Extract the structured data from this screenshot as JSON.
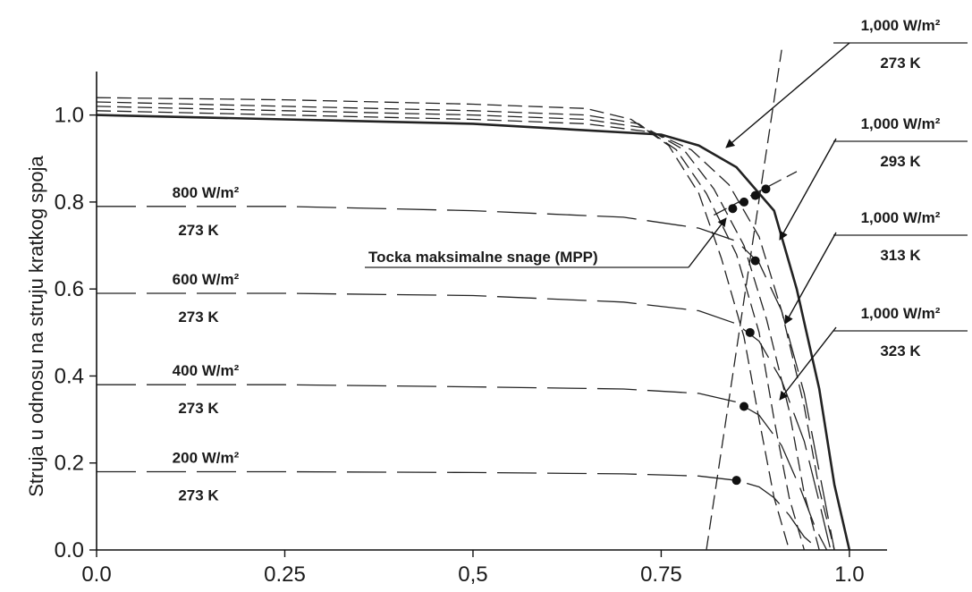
{
  "chart_data": {
    "type": "line",
    "title": "",
    "xlabel": "",
    "ylabel": "Struja u odnosu na struju kratkog spoja",
    "xlim": [
      0,
      1.05
    ],
    "ylim": [
      0,
      1.1
    ],
    "x_ticks": [
      {
        "value": 0,
        "label": "0.0"
      },
      {
        "value": 0.25,
        "label": "0.25"
      },
      {
        "value": 0.5,
        "label": "0,5"
      },
      {
        "value": 0.75,
        "label": "0.75"
      },
      {
        "value": 1.0,
        "label": "1.0"
      }
    ],
    "y_ticks": [
      {
        "value": 0,
        "label": "0.0"
      },
      {
        "value": 0.2,
        "label": "0.2"
      },
      {
        "value": 0.4,
        "label": "0.4"
      },
      {
        "value": 0.6,
        "label": "0.6"
      },
      {
        "value": 0.8,
        "label": "0.8"
      },
      {
        "value": 1.0,
        "label": "1.0"
      }
    ],
    "grid": false,
    "legend": "none",
    "series": [
      {
        "irradiance": "1,000 W/m²",
        "temperature": "273 K",
        "style": "solid",
        "x": [
          0,
          0.25,
          0.5,
          0.65,
          0.75,
          0.8,
          0.85,
          0.9,
          0.93,
          0.96,
          0.98,
          1.0
        ],
        "y": [
          1.0,
          0.99,
          0.98,
          0.965,
          0.955,
          0.93,
          0.88,
          0.78,
          0.6,
          0.37,
          0.15,
          0.0
        ]
      },
      {
        "irradiance": "1,000 W/m²",
        "temperature": "293 K",
        "style": "dashed",
        "x": [
          0,
          0.25,
          0.5,
          0.65,
          0.74,
          0.79,
          0.84,
          0.88,
          0.91,
          0.94,
          0.96,
          0.98
        ],
        "y": [
          1.01,
          1.0,
          0.99,
          0.98,
          0.96,
          0.92,
          0.84,
          0.72,
          0.55,
          0.33,
          0.14,
          0.0
        ]
      },
      {
        "irradiance": "1,000 W/m²",
        "temperature": "313 K",
        "style": "dashed",
        "x": [
          0,
          0.25,
          0.5,
          0.65,
          0.73,
          0.78,
          0.82,
          0.86,
          0.89,
          0.92,
          0.94,
          0.96
        ],
        "y": [
          1.02,
          1.01,
          1.0,
          0.99,
          0.97,
          0.92,
          0.83,
          0.7,
          0.53,
          0.32,
          0.13,
          0.0
        ]
      },
      {
        "irradiance": "1,000 W/m²",
        "temperature": "323 K",
        "style": "dashed",
        "x": [
          0,
          0.25,
          0.5,
          0.65,
          0.72,
          0.77,
          0.81,
          0.85,
          0.88,
          0.9,
          0.92,
          0.94
        ],
        "y": [
          1.03,
          1.02,
          1.01,
          1.0,
          0.98,
          0.92,
          0.82,
          0.68,
          0.5,
          0.3,
          0.12,
          0.0
        ]
      },
      {
        "irradiance": "1,000 W/m²",
        "temperature": "",
        "style": "dashed",
        "x": [
          0,
          0.25,
          0.5,
          0.65,
          0.71,
          0.76,
          0.8,
          0.83,
          0.86,
          0.88,
          0.9,
          0.92
        ],
        "y": [
          1.04,
          1.035,
          1.025,
          1.015,
          0.99,
          0.93,
          0.82,
          0.67,
          0.49,
          0.3,
          0.12,
          0.0
        ]
      },
      {
        "irradiance": "800 W/m²",
        "temperature": "273 K",
        "style": "dashed",
        "x": [
          0,
          0.25,
          0.5,
          0.7,
          0.8,
          0.85,
          0.88,
          0.91,
          0.94,
          0.96,
          0.98
        ],
        "y": [
          0.79,
          0.79,
          0.78,
          0.765,
          0.74,
          0.71,
          0.66,
          0.55,
          0.36,
          0.18,
          0.0
        ]
      },
      {
        "irradiance": "600 W/m²",
        "temperature": "273 K",
        "style": "dashed",
        "x": [
          0,
          0.25,
          0.5,
          0.7,
          0.8,
          0.85,
          0.88,
          0.91,
          0.94,
          0.96,
          0.975
        ],
        "y": [
          0.59,
          0.59,
          0.585,
          0.57,
          0.55,
          0.52,
          0.48,
          0.39,
          0.25,
          0.11,
          0.0
        ]
      },
      {
        "irradiance": "400 W/m²",
        "temperature": "273 K",
        "style": "dashed",
        "x": [
          0,
          0.25,
          0.5,
          0.7,
          0.8,
          0.85,
          0.88,
          0.91,
          0.935,
          0.955,
          0.97
        ],
        "y": [
          0.38,
          0.38,
          0.375,
          0.37,
          0.36,
          0.34,
          0.31,
          0.24,
          0.14,
          0.05,
          0.0
        ]
      },
      {
        "irradiance": "200 W/m²",
        "temperature": "273 K",
        "style": "dashed",
        "x": [
          0,
          0.25,
          0.5,
          0.7,
          0.8,
          0.85,
          0.88,
          0.9,
          0.92,
          0.94,
          0.96
        ],
        "y": [
          0.18,
          0.18,
          0.178,
          0.175,
          0.17,
          0.16,
          0.145,
          0.12,
          0.08,
          0.03,
          0.0
        ]
      }
    ],
    "mpp_points": [
      {
        "x": 0.889,
        "y": 0.83
      },
      {
        "x": 0.875,
        "y": 0.815
      },
      {
        "x": 0.86,
        "y": 0.8
      },
      {
        "x": 0.845,
        "y": 0.785
      },
      {
        "x": 0.875,
        "y": 0.665
      },
      {
        "x": 0.868,
        "y": 0.5
      },
      {
        "x": 0.86,
        "y": 0.33
      },
      {
        "x": 0.85,
        "y": 0.16
      }
    ],
    "mpp_lines": [
      {
        "x": [
          0.81,
          0.91
        ],
        "y": [
          0.0,
          1.15
        ]
      },
      {
        "x": [
          0.82,
          0.93
        ],
        "y": [
          0.77,
          0.87
        ]
      }
    ],
    "annotations": {
      "right": [
        {
          "irradiance": "1,000 W/m²",
          "temperature": "273 K"
        },
        {
          "irradiance": "1,000 W/m²",
          "temperature": "293 K"
        },
        {
          "irradiance": "1,000 W/m²",
          "temperature": "313 K"
        },
        {
          "irradiance": "1,000 W/m²",
          "temperature": "323 K"
        }
      ],
      "left": [
        {
          "irradiance": "800 W/m²",
          "temperature": "273 K"
        },
        {
          "irradiance": "600 W/m²",
          "temperature": "273 K"
        },
        {
          "irradiance": "400 W/m²",
          "temperature": "273 K"
        },
        {
          "irradiance": "200 W/m²",
          "temperature": "273 K"
        }
      ],
      "mpp_label": "Tocka maksimalne snage (MPP)"
    }
  }
}
